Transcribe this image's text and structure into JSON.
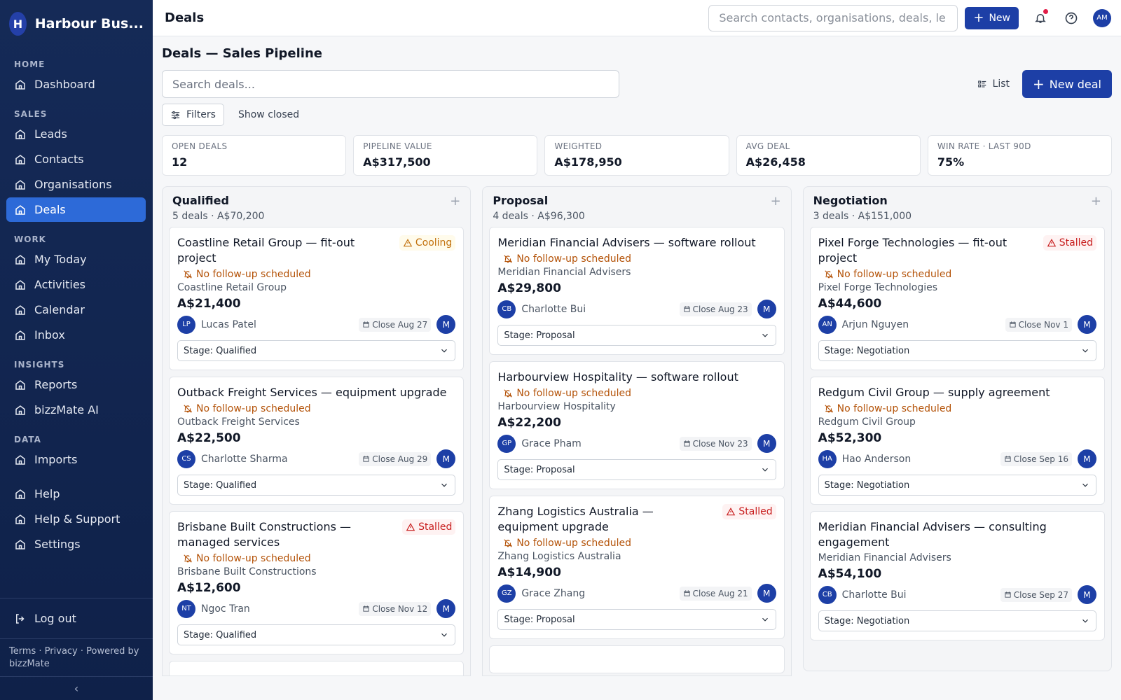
{
  "sidebar": {
    "brand": {
      "initial": "H",
      "name": "Harbour Bus..."
    },
    "sections": [
      {
        "heading": "HOME",
        "items": [
          {
            "label": "Dashboard"
          }
        ]
      },
      {
        "heading": "SALES",
        "items": [
          {
            "label": "Leads"
          },
          {
            "label": "Contacts"
          },
          {
            "label": "Organisations"
          },
          {
            "label": "Deals",
            "active": true
          }
        ]
      },
      {
        "heading": "WORK",
        "items": [
          {
            "label": "My Today"
          },
          {
            "label": "Activities"
          },
          {
            "label": "Calendar"
          },
          {
            "label": "Inbox"
          }
        ]
      },
      {
        "heading": "INSIGHTS",
        "items": [
          {
            "label": "Reports"
          },
          {
            "label": "bizzMate AI"
          }
        ]
      },
      {
        "heading": "DATA",
        "items": [
          {
            "label": "Imports"
          }
        ]
      }
    ],
    "bottom_items": [
      {
        "label": "Help"
      },
      {
        "label": "Help & Support"
      },
      {
        "label": "Settings"
      }
    ],
    "logout": "Log out",
    "footer": "Terms · Privacy · Powered by bizzMate"
  },
  "topbar": {
    "title": "Deals",
    "search": "Search contacts, organisations, deals, le",
    "new_button": "New",
    "avatar": "AM"
  },
  "page": {
    "heading": "Deals — Sales Pipeline",
    "search": "Search deals...",
    "list_button": "List",
    "new_deal_button": "New deal",
    "filters_button": "Filters",
    "show_closed": "Show closed",
    "stats": [
      {
        "label": "OPEN DEALS",
        "value": "12"
      },
      {
        "label": "PIPELINE VALUE",
        "value": "A$317,500"
      },
      {
        "label": "WEIGHTED",
        "value": "A$178,950"
      },
      {
        "label": "AVG DEAL",
        "value": "A$26,458"
      },
      {
        "label": "WIN RATE · LAST 90D",
        "value": "75%"
      }
    ],
    "columns": [
      {
        "name": "Qualified",
        "summary": "5 deals · A$70,200",
        "deals": [
          {
            "title": "Coastline Retail Group — fit-out project",
            "badge": {
              "label": "Cooling",
              "color": "#c2710c",
              "bg": "#fffbeb"
            },
            "warning": "No follow-up scheduled",
            "org": "Coastline Retail Group",
            "amount": "A$21,400",
            "owner_initials": "LP",
            "owner": "Lucas Patel",
            "close": "Close Aug 27",
            "assignee": "M",
            "stage": "Stage: Qualified"
          },
          {
            "title": "Outback Freight Services — equipment upgrade",
            "warning": "No follow-up scheduled",
            "org": "Outback Freight Services",
            "amount": "A$22,500",
            "owner_initials": "CS",
            "owner": "Charlotte Sharma",
            "close": "Close Aug 29",
            "assignee": "M",
            "stage": "Stage: Qualified"
          },
          {
            "title": "Brisbane Built Constructions — managed services",
            "badge": {
              "label": "Stalled",
              "color": "#c81e1e",
              "bg": "#fef2f2"
            },
            "warning": "No follow-up scheduled",
            "org": "Brisbane Built Constructions",
            "amount": "A$12,600",
            "owner_initials": "NT",
            "owner": "Ngoc Tran",
            "close": "Close Nov 12",
            "assignee": "M",
            "stage": "Stage: Qualified"
          }
        ]
      },
      {
        "name": "Proposal",
        "summary": "4 deals · A$96,300",
        "deals": [
          {
            "title": "Meridian Financial Advisers — software rollout",
            "warning": "No follow-up scheduled",
            "org": "Meridian Financial Advisers",
            "amount": "A$29,800",
            "owner_initials": "CB",
            "owner": "Charlotte Bui",
            "close": "Close Aug 23",
            "assignee": "M",
            "stage": "Stage: Proposal"
          },
          {
            "title": "Harbourview Hospitality — software rollout",
            "warning": "No follow-up scheduled",
            "org": "Harbourview Hospitality",
            "amount": "A$22,200",
            "owner_initials": "GP",
            "owner": "Grace Pham",
            "close": "Close Nov 23",
            "assignee": "M",
            "stage": "Stage: Proposal"
          },
          {
            "title": "Zhang Logistics Australia — equipment upgrade",
            "badge": {
              "label": "Stalled",
              "color": "#c81e1e",
              "bg": "#fef2f2"
            },
            "warning": "No follow-up scheduled",
            "org": "Zhang Logistics Australia",
            "amount": "A$14,900",
            "owner_initials": "GZ",
            "owner": "Grace Zhang",
            "close": "Close Aug 21",
            "assignee": "M",
            "stage": "Stage: Proposal"
          }
        ]
      },
      {
        "name": "Negotiation",
        "summary": "3 deals · A$151,000",
        "deals": [
          {
            "title": "Pixel Forge Technologies — fit-out project",
            "badge": {
              "label": "Stalled",
              "color": "#c81e1e",
              "bg": "#fef2f2"
            },
            "warning": "No follow-up scheduled",
            "org": "Pixel Forge Technologies",
            "amount": "A$44,600",
            "owner_initials": "AN",
            "owner": "Arjun Nguyen",
            "close": "Close Nov 1",
            "assignee": "M",
            "stage": "Stage: Negotiation"
          },
          {
            "title": "Redgum Civil Group — supply agreement",
            "warning": "No follow-up scheduled",
            "org": "Redgum Civil Group",
            "amount": "A$52,300",
            "owner_initials": "HA",
            "owner": "Hao Anderson",
            "close": "Close Sep 16",
            "assignee": "M",
            "stage": "Stage: Negotiation"
          },
          {
            "title": "Meridian Financial Advisers — consulting engagement",
            "org": "Meridian Financial Advisers",
            "amount": "A$54,100",
            "owner_initials": "CB",
            "owner": "Charlotte Bui",
            "close": "Close Sep 27",
            "assignee": "M",
            "stage": "Stage: Negotiation"
          }
        ]
      }
    ]
  }
}
